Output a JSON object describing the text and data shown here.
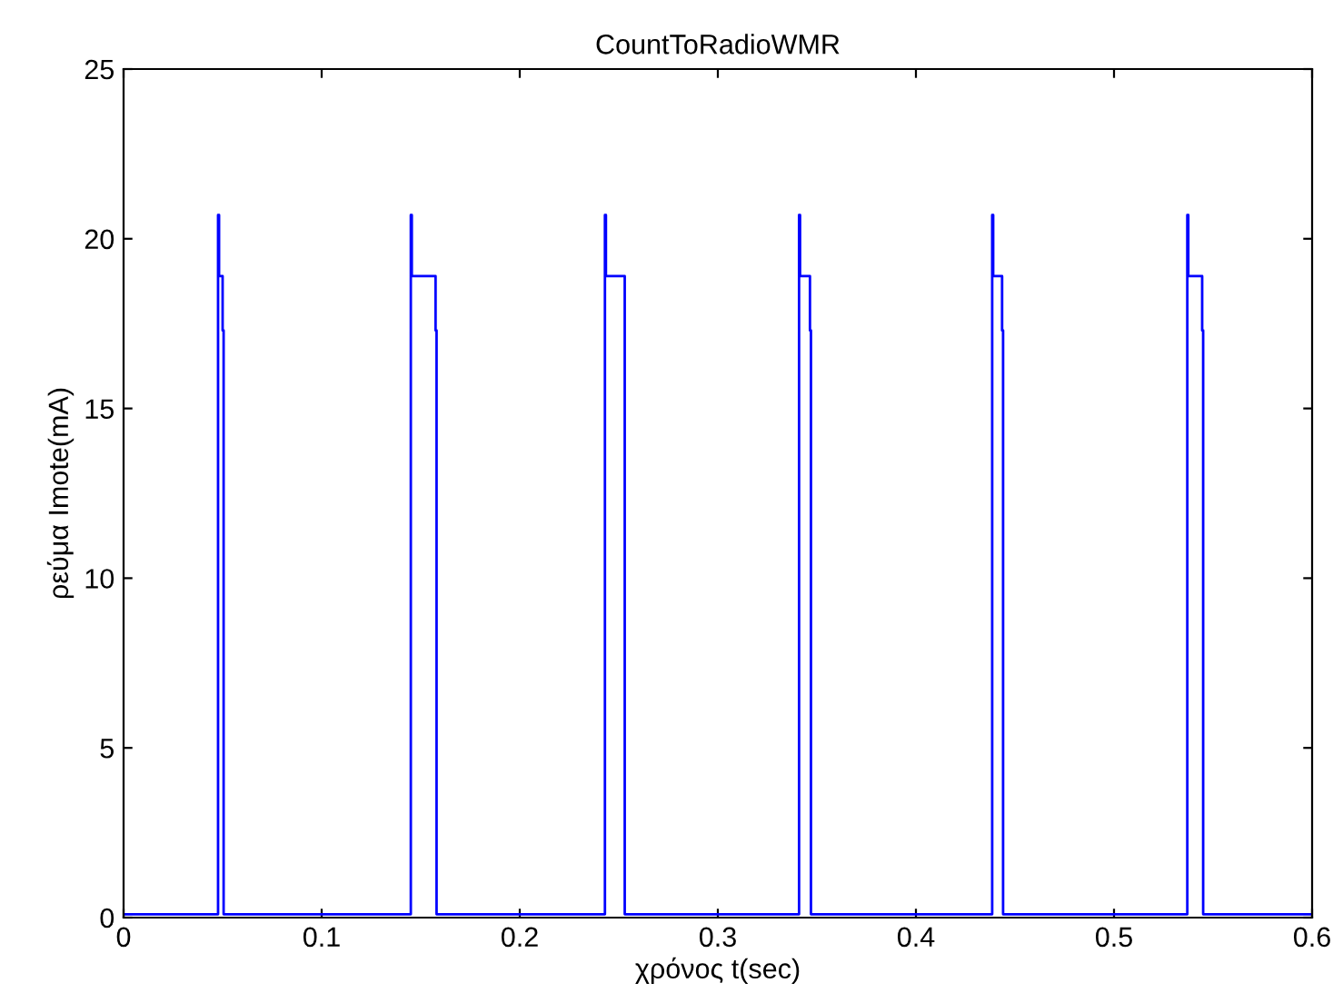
{
  "chart_data": {
    "type": "line",
    "title": "CountToRadioWMR",
    "xlabel": "χρόνος t(sec)",
    "ylabel": "ρεύμα Imote(mA)",
    "series": [
      {
        "color": "#0000ff",
        "x": [
          0,
          0.0477,
          0.0477,
          0.0482,
          0.0482,
          0.05,
          0.05,
          0.0505,
          0.0505,
          0.145,
          0.145,
          0.1455,
          0.1455,
          0.1575,
          0.1575,
          0.158,
          0.158,
          0.243,
          0.243,
          0.2435,
          0.2435,
          0.253,
          0.253,
          0.341,
          0.341,
          0.3415,
          0.3415,
          0.3465,
          0.3465,
          0.347,
          0.347,
          0.4385,
          0.4385,
          0.439,
          0.439,
          0.4435,
          0.4435,
          0.444,
          0.444,
          0.537,
          0.537,
          0.5375,
          0.5375,
          0.5445,
          0.5445,
          0.545,
          0.545,
          0.6
        ],
        "values": [
          0.1,
          0.1,
          20.7,
          20.7,
          18.9,
          18.9,
          17.3,
          17.3,
          0.1,
          0.1,
          20.7,
          20.7,
          18.9,
          18.9,
          17.3,
          17.3,
          0.1,
          0.1,
          20.7,
          20.7,
          18.9,
          18.9,
          0.1,
          0.1,
          20.7,
          20.7,
          18.9,
          18.9,
          17.3,
          17.3,
          0.1,
          0.1,
          20.7,
          20.7,
          18.9,
          18.9,
          17.3,
          17.3,
          0.1,
          0.1,
          20.7,
          20.7,
          18.9,
          18.9,
          17.3,
          17.3,
          0.1,
          0.1
        ]
      }
    ],
    "xlim": [
      0,
      0.6
    ],
    "ylim": [
      0,
      25
    ],
    "xticks": [
      0,
      0.1,
      0.2,
      0.3,
      0.4,
      0.5,
      0.6
    ],
    "yticks": [
      0,
      5,
      10,
      15,
      20,
      25
    ],
    "grid": false,
    "legend": false,
    "line_style": "solid",
    "marker": "none"
  }
}
